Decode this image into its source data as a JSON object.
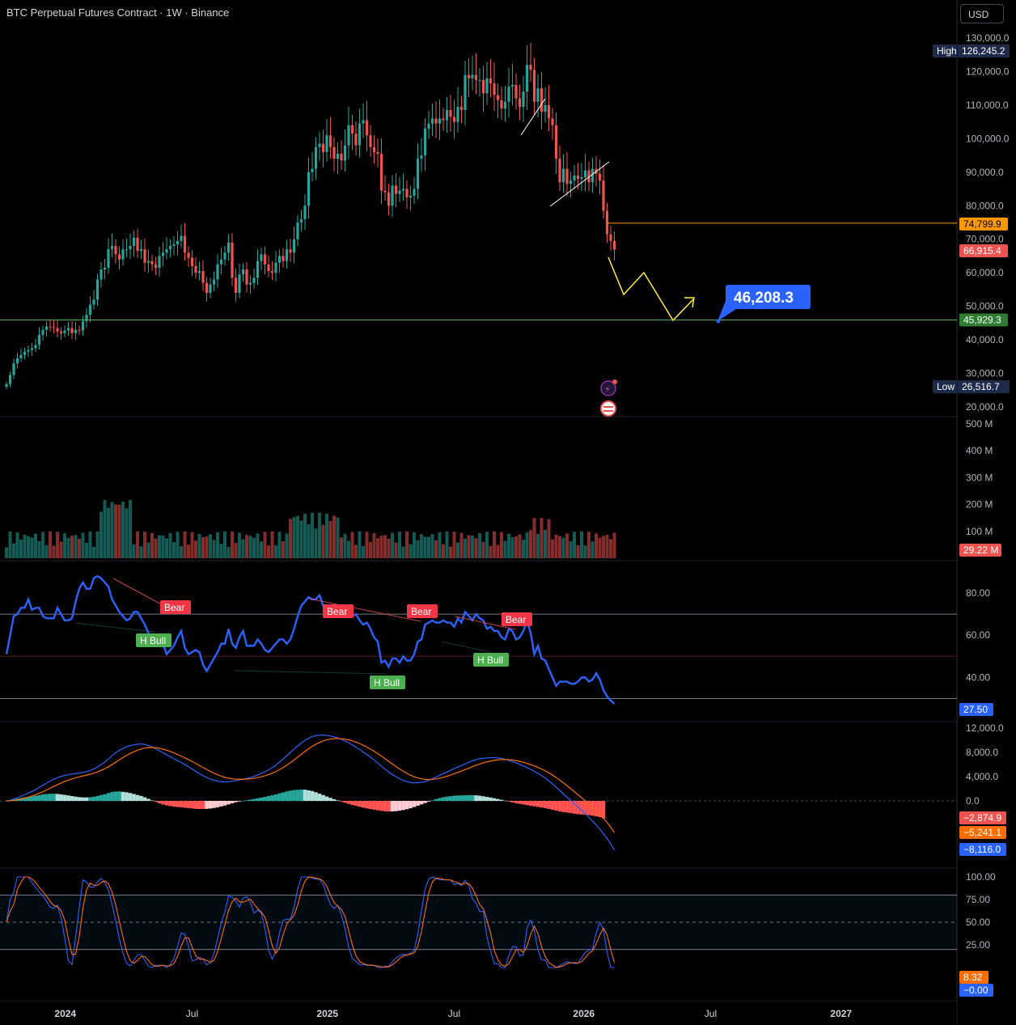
{
  "header": {
    "title": "BTC Perpetual Futures Contract · 1W · Binance",
    "currency_button": "USD"
  },
  "colors": {
    "up": "#26a69a",
    "down": "#ef5350",
    "rsi": "#2962ff",
    "macd": "#2962ff",
    "signal": "#ff6d00",
    "stoch_k": "#2962ff",
    "stoch_d": "#ff6d00",
    "target_line": "#4caf50",
    "resistance_line": "#ff9800",
    "projection": "#ffeb3b"
  },
  "chart_data": [
    {
      "type": "candlestick",
      "title": "BTC Perpetual Futures Contract · 1W · Binance",
      "currency": "USD",
      "y_axis_ticks": [
        "130,000.0",
        "120,000.0",
        "110,000.0",
        "100,000.0",
        "90,000.0",
        "80,000.0",
        "70,000.0",
        "60,000.0",
        "50,000.0",
        "40,000.0",
        "30,000.0",
        "20,000.0"
      ],
      "ylim": [
        17000,
        133000
      ],
      "x_axis_labels": [
        "2024",
        "Jul",
        "2025",
        "Jul",
        "2026",
        "Jul",
        "2027"
      ],
      "weekly_closes": [
        26800,
        29500,
        33000,
        34500,
        35500,
        36500,
        37000,
        37500,
        38500,
        41500,
        43000,
        44000,
        43800,
        43500,
        42500,
        42000,
        42800,
        43500,
        42000,
        43000,
        42800,
        45500,
        47500,
        50500,
        52000,
        58000,
        61000,
        61500,
        67000,
        68000,
        65500,
        64000,
        67000,
        67000,
        68000,
        70500,
        66500,
        67000,
        63000,
        63500,
        62500,
        61500,
        65000,
        66000,
        67000,
        68000,
        68500,
        69500,
        71000,
        66000,
        64500,
        62000,
        60000,
        60500,
        57000,
        54000,
        56500,
        58000,
        62500,
        64000,
        66000,
        69000,
        58500,
        54000,
        59500,
        61000,
        56500,
        57000,
        58500,
        63500,
        65500,
        62500,
        60500,
        60000,
        63000,
        65000,
        63500,
        67000,
        66000,
        70000,
        75000,
        76000,
        80000,
        90000,
        91000,
        97500,
        98500,
        96000,
        101000,
        97500,
        94000,
        95500,
        93500,
        98000,
        104000,
        101500,
        98000,
        104500,
        105500,
        101000,
        97500,
        96000,
        95500,
        84500,
        84000,
        80000,
        86000,
        83500,
        84500,
        85000,
        82500,
        83000,
        85000,
        94000,
        95000,
        103000,
        104500,
        106000,
        104500,
        106000,
        105500,
        108500,
        106500,
        105000,
        109500,
        108500,
        119000,
        118000,
        119000,
        117500,
        117500,
        113500,
        118000,
        116500,
        113000,
        111500,
        109000,
        111000,
        115500,
        116000,
        112000,
        109500,
        114000,
        122000,
        120500,
        111000,
        115000,
        108000,
        110000,
        106000,
        104000,
        94000,
        87000,
        91000,
        86500,
        87500,
        89000,
        88000,
        88500,
        90500,
        87000,
        91000,
        89500,
        87500,
        78500,
        71500,
        69500,
        66915
      ],
      "high": 126245.2,
      "low": 26516.7,
      "last_price": 66915.4,
      "resistance_level": 74799.9,
      "support_level": 45929.3,
      "target_label": "46,208.3",
      "axis_badges": {
        "high_label": "High",
        "high_value": "126,245.2",
        "low_label": "Low",
        "low_value": "26,516.7",
        "resistance": "74,799.9",
        "last": "66,915.4",
        "support": "45,929.3"
      }
    },
    {
      "type": "bar",
      "title": "Volume",
      "y_axis_ticks": [
        "500 M",
        "400 M",
        "300 M",
        "200 M",
        "100 M"
      ],
      "ylim": [
        0,
        520
      ],
      "units": "M",
      "last_value_label": "29.22 M"
    },
    {
      "type": "line",
      "title": "RSI",
      "y_axis_ticks": [
        "80.00",
        "60.00",
        "40.00"
      ],
      "ylim": [
        22,
        97
      ],
      "levels": [
        70,
        50,
        30
      ],
      "values": [
        51,
        60,
        69,
        70,
        73,
        73,
        77,
        72,
        73,
        73,
        69,
        68,
        68,
        68,
        73,
        70,
        67,
        67,
        68,
        76,
        82,
        85,
        82,
        82,
        87,
        88,
        87,
        85,
        83,
        77,
        74,
        71,
        69,
        67,
        68,
        71,
        71,
        68,
        65,
        61,
        57,
        59,
        56,
        56,
        51,
        53,
        55,
        59,
        62,
        54,
        51,
        52,
        53,
        52,
        46,
        43,
        46,
        49,
        52,
        56,
        56,
        63,
        56,
        54,
        59,
        62,
        55,
        55,
        55,
        58,
        56,
        53,
        52,
        54,
        56,
        58,
        58,
        56,
        58,
        63,
        69,
        74,
        76,
        78,
        77,
        77,
        79,
        74,
        70,
        72,
        71,
        73,
        69,
        71,
        70,
        69,
        70,
        67,
        65,
        66,
        63,
        59,
        57,
        47,
        48,
        45,
        49,
        49,
        47,
        50,
        48,
        48,
        51,
        57,
        58,
        65,
        66,
        67,
        66,
        66,
        67,
        66,
        66,
        64,
        68,
        66,
        71,
        69,
        67,
        70,
        68,
        67,
        63,
        64,
        62,
        62,
        59,
        58,
        63,
        62,
        58,
        59,
        62,
        67,
        61,
        51,
        55,
        49,
        48,
        44,
        40,
        36,
        38,
        38,
        38,
        37,
        37,
        38,
        40,
        40,
        38,
        39,
        42,
        39,
        34,
        31,
        29,
        27.5
      ],
      "last_value_label": "27.50",
      "divergence_labels": [
        {
          "text": "Bear",
          "kind": "bear"
        },
        {
          "text": "H Bull",
          "kind": "bull"
        },
        {
          "text": "Bear",
          "kind": "bear"
        },
        {
          "text": "H Bull",
          "kind": "bull"
        },
        {
          "text": "Bear",
          "kind": "bear"
        },
        {
          "text": "H Bull",
          "kind": "bull"
        },
        {
          "text": "Bear",
          "kind": "bear"
        }
      ]
    },
    {
      "type": "line",
      "title": "MACD",
      "y_axis_ticks": [
        "12,000.0",
        "8,000.0",
        "4,000.0",
        "0.0"
      ],
      "ylim": [
        -9500,
        13000
      ],
      "series": [
        {
          "name": "MACD",
          "values": [
            0,
            113,
            300,
            533,
            776,
            1033,
            1304,
            1563,
            1855,
            2210,
            2578,
            2937,
            3279,
            3583,
            3826,
            4034,
            4200,
            4325,
            4430,
            4510,
            4590,
            4690,
            4830,
            5020,
            5270,
            5600,
            6000,
            6400,
            6920,
            7460,
            7930,
            8350,
            8640,
            8920,
            9120,
            9250,
            9330,
            9390,
            9310,
            9140,
            8900,
            8610,
            8290,
            7950,
            7620,
            7290,
            6950,
            6630,
            6330,
            5980,
            5630,
            5250,
            4850,
            4500,
            4160,
            3860,
            3600,
            3390,
            3250,
            3170,
            3130,
            3170,
            3260,
            3370,
            3460,
            3580,
            3700,
            3860,
            4050,
            4280,
            4520,
            4800,
            5130,
            5500,
            5900,
            6400,
            6900,
            7450,
            8000,
            8550,
            9050,
            9550,
            10000,
            10330,
            10610,
            10770,
            10840,
            10860,
            10800,
            10700,
            10560,
            10380,
            10140,
            9880,
            9580,
            9230,
            8870,
            8490,
            8070,
            7640,
            7200,
            6740,
            6240,
            5730,
            5240,
            4770,
            4350,
            3970,
            3650,
            3380,
            3170,
            3020,
            2970,
            3000,
            3070,
            3200,
            3400,
            3640,
            3930,
            4210,
            4490,
            4770,
            5040,
            5330,
            5590,
            5830,
            6090,
            6360,
            6600,
            6790,
            6940,
            7030,
            7090,
            7140,
            7130,
            7080,
            6990,
            6860,
            6680,
            6480,
            6260,
            6030,
            5780,
            5500,
            5200,
            4870,
            4540,
            4160,
            3760,
            3300,
            2800,
            2260,
            1700,
            1150,
            600,
            100,
            -450,
            -1000,
            -1550,
            -2100,
            -2700,
            -3300,
            -3950,
            -4650,
            -5400,
            -6200,
            -7100,
            -8116
          ]
        },
        {
          "name": "Signal",
          "values": [
            0,
            23,
            78,
            169,
            290,
            439,
            612,
            803,
            1013,
            1252,
            1517,
            1801,
            2097,
            2394,
            2680,
            2951,
            3201,
            3426,
            3627,
            3804,
            3961,
            4107,
            4251,
            4405,
            4578,
            4782,
            5026,
            5301,
            5625,
            5992,
            6380,
            6774,
            7147,
            7502,
            7826,
            8111,
            8355,
            8562,
            8712,
            8798,
            8818,
            8776,
            8679,
            8533,
            8350,
            8138,
            7900,
            7646,
            7383,
            7102,
            6808,
            6496,
            6167,
            5834,
            5499,
            5171,
            4857,
            4564,
            4301,
            4075,
            3886,
            3743,
            3647,
            3592,
            3566,
            3569,
            3595,
            3648,
            3729,
            3839,
            3975,
            4140,
            4338,
            4570,
            4836,
            5149,
            5499,
            5889,
            6311,
            6759,
            7217,
            7684,
            8147,
            8584,
            8989,
            9345,
            9644,
            9887,
            10070,
            10196,
            10269,
            10291,
            10261,
            10185,
            10064,
            9897,
            9692,
            9451,
            9175,
            8868,
            8534,
            8175,
            7789,
            7378,
            6950,
            6514,
            6081,
            5659,
            5257,
            4882,
            4539,
            4235,
            3982,
            3786,
            3643,
            3554,
            3523,
            3547,
            3624,
            3741,
            3891,
            4067,
            4262,
            4476,
            4699,
            4925,
            5158,
            5398,
            5638,
            5868,
            6082,
            6272,
            6435,
            6576,
            6687,
            6766,
            6811,
            6821,
            6793,
            6731,
            6637,
            6516,
            6369,
            6195,
            5996,
            5771,
            5525,
            5252,
            4954,
            4623,
            4258,
            3858,
            3427,
            2972,
            2497,
            2018,
            1524,
            1019,
            509,
            -3,
            -522,
            -1053,
            -1612,
            -2219,
            -2868,
            -3535,
            -4348,
            -5241
          ]
        },
        {
          "name": "Histogram",
          "values": [
            0,
            90,
            222,
            364,
            486,
            594,
            692,
            760,
            842,
            958,
            1061,
            1136,
            1182,
            1189,
            1146,
            1083,
            999,
            899,
            803,
            706,
            629,
            583,
            579,
            615,
            692,
            818,
            974,
            1099,
            1295,
            1468,
            1550,
            1576,
            1493,
            1418,
            1294,
            1139,
            975,
            828,
            598,
            342,
            82,
            -166,
            -389,
            -583,
            -730,
            -848,
            -950,
            -1016,
            -1053,
            -1122,
            -1178,
            -1246,
            -1317,
            -1334,
            -1339,
            -1311,
            -1257,
            -1174,
            -1051,
            -905,
            -756,
            -573,
            -387,
            -222,
            -106,
            11,
            105,
            212,
            321,
            441,
            545,
            660,
            792,
            930,
            1064,
            1251,
            1401,
            1561,
            1689,
            1791,
            1833,
            1866,
            1853,
            1746,
            1621,
            1425,
            1196,
            973,
            730,
            504,
            291,
            89,
            -121,
            -305,
            -484,
            -667,
            -822,
            -961,
            -1105,
            -1228,
            -1334,
            -1435,
            -1549,
            -1648,
            -1710,
            -1744,
            -1731,
            -1689,
            -1607,
            -1502,
            -1369,
            -1215,
            -1012,
            -786,
            -573,
            -354,
            -123,
            93,
            306,
            469,
            599,
            703,
            778,
            854,
            891,
            905,
            932,
            962,
            962,
            922,
            858,
            758,
            655,
            564,
            443,
            314,
            179,
            39,
            -113,
            -251,
            -377,
            -486,
            -589,
            -695,
            -796,
            -901,
            -985,
            -1092,
            -1194,
            -1323,
            -1458,
            -1598,
            -1727,
            -1847,
            -1918,
            -2013,
            -2106,
            -2187,
            -2233,
            -2288,
            -2338,
            -2432,
            -2532,
            -2665,
            -2874.9
          ]
        }
      ],
      "last_value_labels": [
        "−2,874.9",
        "−5,241.1",
        "−8,116.0"
      ]
    },
    {
      "type": "line",
      "title": "Stochastic RSI",
      "y_axis_ticks": [
        "100.00",
        "75.00",
        "50.00",
        "25.00"
      ],
      "ylim": [
        -5,
        108
      ],
      "levels": [
        80,
        50,
        20
      ],
      "series": [
        {
          "name": "K",
          "values": [
            30,
            55,
            85,
            100,
            100,
            100,
            90,
            70,
            50,
            30,
            15,
            8,
            30,
            70,
            90,
            95,
            80,
            55,
            30,
            12,
            5,
            3,
            5,
            15,
            20,
            30,
            20,
            10,
            5,
            10,
            30,
            20,
            10,
            5,
            15,
            30,
            50,
            65,
            80,
            95,
            100,
            100,
            100,
            95,
            75,
            50,
            45,
            40,
            30,
            15,
            5,
            3,
            2,
            3,
            5,
            10,
            14,
            30,
            70,
            90,
            100,
            95,
            85,
            75,
            70,
            75,
            90,
            70,
            40,
            20,
            8,
            5,
            15,
            30,
            20,
            8,
            5,
            3,
            2,
            5,
            12,
            14,
            10,
            25,
            30,
            20,
            8,
            5,
            4,
            5,
            10,
            12,
            11,
            8,
            3,
            -1,
            -1,
            0,
            0,
            0,
            0,
            0,
            0,
            0,
            0,
            0,
            0,
            0,
            0,
            0,
            0,
            0,
            0,
            0,
            0,
            0,
            0,
            0,
            0,
            0,
            0,
            0,
            0,
            0,
            0,
            0,
            0,
            0,
            0,
            0,
            0,
            0,
            0,
            0,
            0,
            0,
            0,
            0,
            0,
            0,
            0,
            0,
            0,
            0,
            0,
            0,
            0,
            0,
            0,
            0,
            0,
            0,
            0,
            0,
            0,
            0,
            0,
            0,
            0,
            0,
            0,
            0,
            0,
            0,
            0,
            0
          ]
        },
        {
          "name": "D",
          "values": []
        }
      ],
      "last_value_labels": [
        "8.32",
        "−0.00"
      ]
    }
  ]
}
